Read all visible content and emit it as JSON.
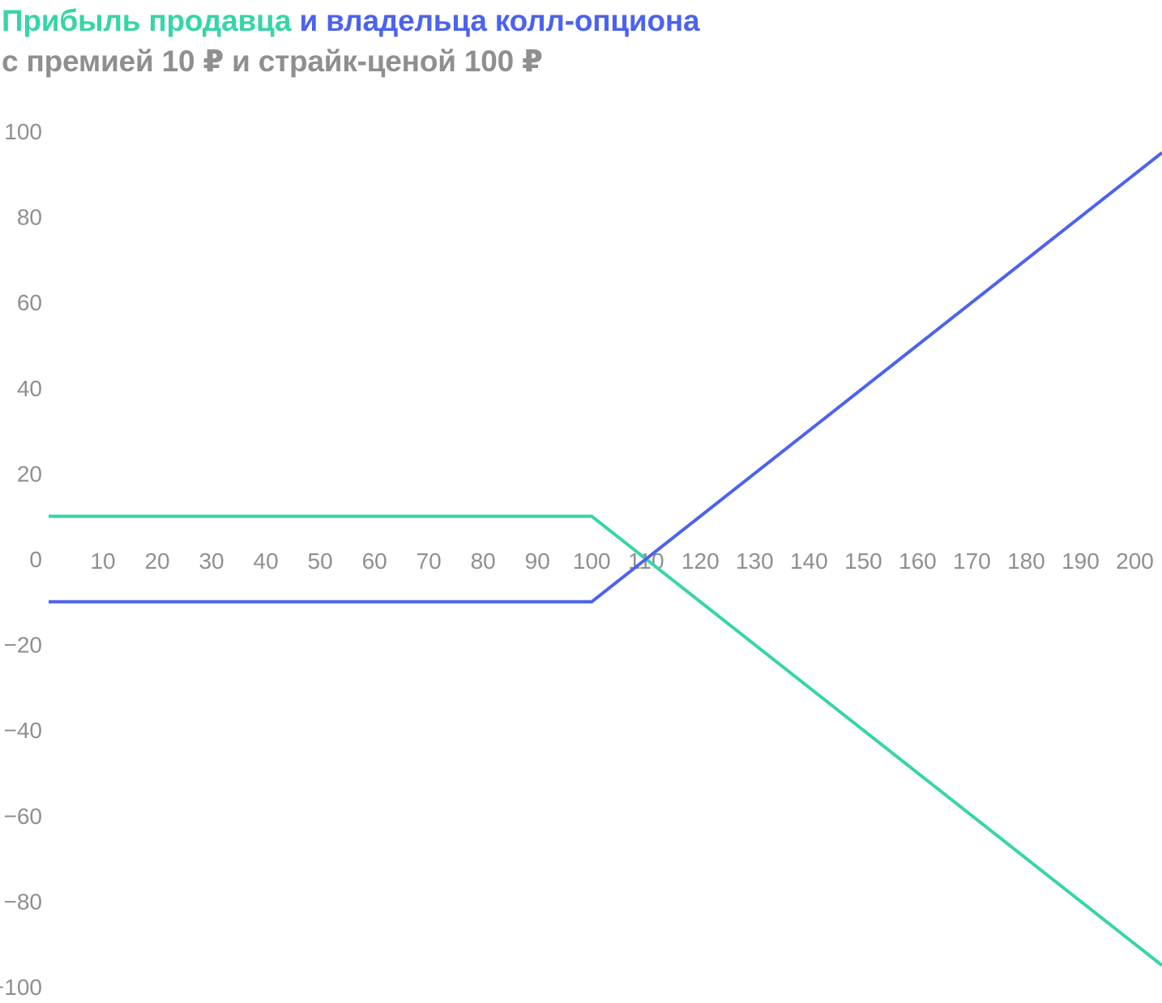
{
  "chart_data": {
    "type": "line",
    "title_parts": [
      {
        "text": "Прибыль продавца",
        "color": "#36D5A7"
      },
      {
        "text": " и владельца колл-опциона",
        "color": "#4B63ED"
      }
    ],
    "subtitle": "с премией 10 ₽ и страйк-ценой 100 ₽",
    "xlabel": "",
    "ylabel": "",
    "x_ticks": [
      10,
      20,
      30,
      40,
      50,
      60,
      70,
      80,
      90,
      100,
      110,
      120,
      130,
      140,
      150,
      160,
      170,
      180,
      190,
      200
    ],
    "y_ticks": [
      {
        "value": 100,
        "label": "100"
      },
      {
        "value": 80,
        "label": "80"
      },
      {
        "value": 60,
        "label": "60"
      },
      {
        "value": 40,
        "label": "40"
      },
      {
        "value": 20,
        "label": "20"
      },
      {
        "value": 0,
        "label": "0"
      },
      {
        "value": -20,
        "label": "−20"
      },
      {
        "value": -40,
        "label": "−40"
      },
      {
        "value": -60,
        "label": "−60"
      },
      {
        "value": -80,
        "label": "−80"
      },
      {
        "value": -100,
        "label": "−100"
      }
    ],
    "xlim": [
      0,
      205
    ],
    "ylim": [
      -100,
      100
    ],
    "grid": false,
    "series": [
      {
        "color": "#36D5A7",
        "points": [
          [
            0,
            10
          ],
          [
            100,
            10
          ],
          [
            205,
            -95
          ]
        ]
      },
      {
        "color": "#4B63ED",
        "points": [
          [
            0,
            -10
          ],
          [
            100,
            -10
          ],
          [
            205,
            95
          ]
        ]
      }
    ]
  }
}
